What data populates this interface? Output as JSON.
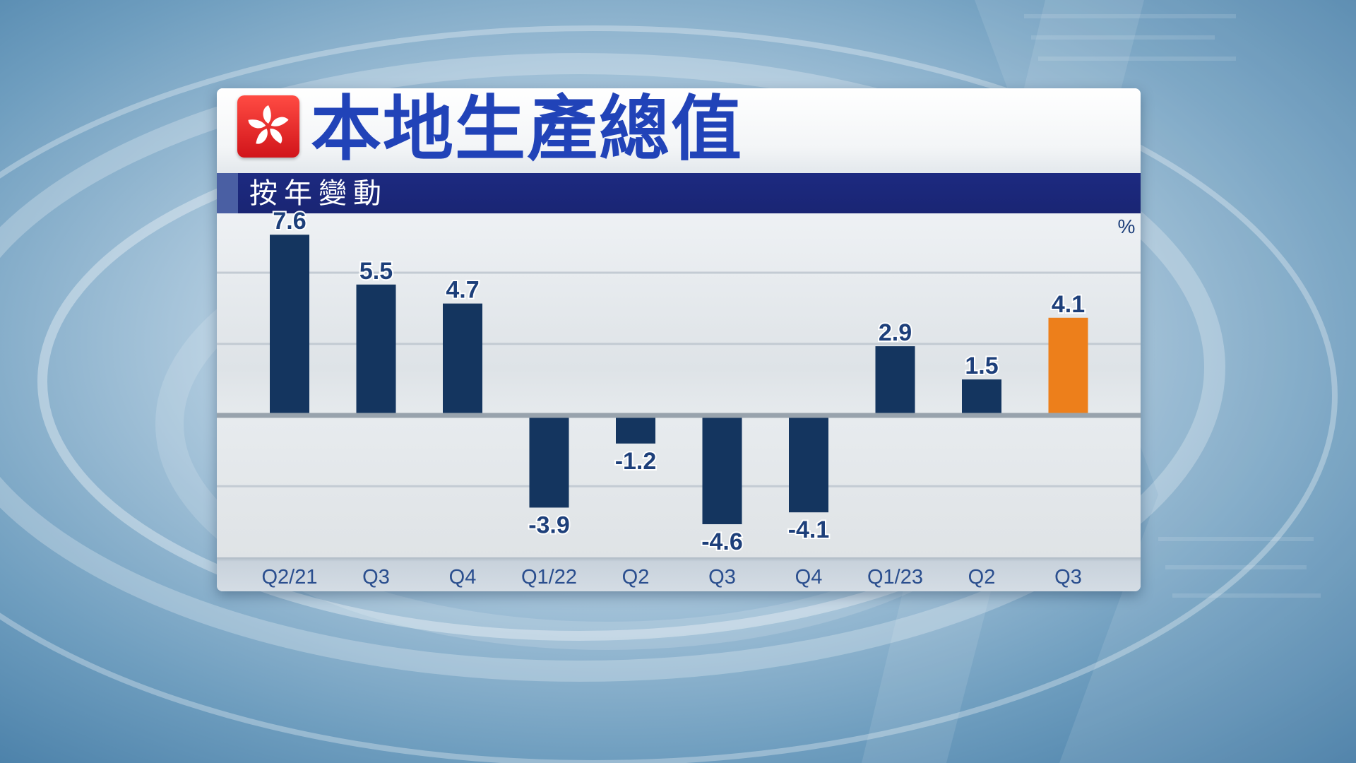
{
  "header": {
    "title": "本地生產總值",
    "subtitle": "按年變動",
    "flag_icon": "hong-kong-flag-icon"
  },
  "colors": {
    "bar": "#14355f",
    "highlight": "#ed7f1b",
    "title": "#2143b8",
    "subtitle_band": "#1c2a80"
  },
  "chart_data": {
    "type": "bar",
    "unit_label": "%",
    "categories": [
      "Q2/21",
      "Q3",
      "Q4",
      "Q1/22",
      "Q2",
      "Q3",
      "Q4",
      "Q1/23",
      "Q2",
      "Q3"
    ],
    "values": [
      7.6,
      5.5,
      4.7,
      -3.9,
      -1.2,
      -4.6,
      -4.1,
      2.9,
      1.5,
      4.1
    ],
    "value_labels": [
      "7.6",
      "5.5",
      "4.7",
      "-3.9",
      "-1.2",
      "-4.6",
      "-4.1",
      "2.9",
      "1.5",
      "4.1"
    ],
    "highlight_index": 9,
    "ylim": [
      -6,
      8.5
    ],
    "gridlines": [
      -3,
      3,
      6
    ],
    "grid": true,
    "legend": "none"
  }
}
